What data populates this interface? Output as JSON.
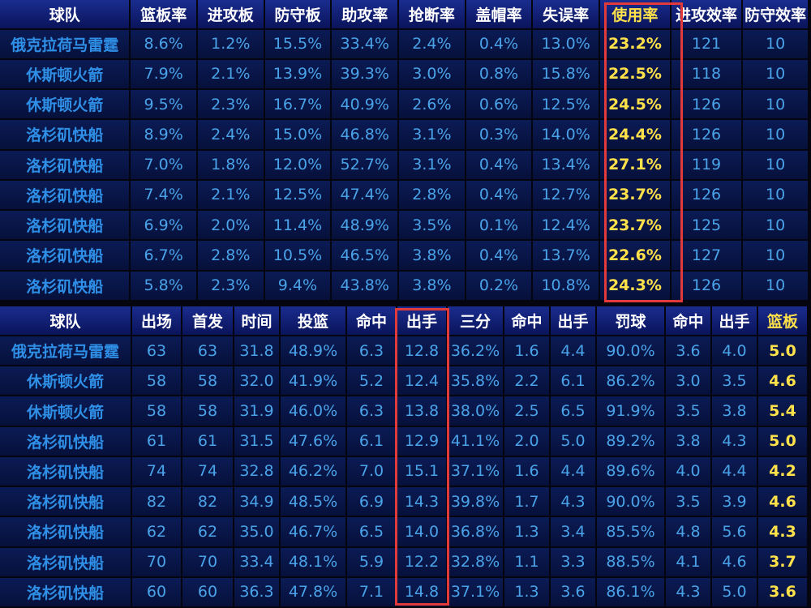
{
  "table1": {
    "headers": [
      "球队",
      "篮板率",
      "进攻板",
      "防守板",
      "助攻率",
      "抢断率",
      "盖帽率",
      "失误率",
      "使用率",
      "进攻效率",
      "防守效率"
    ],
    "highlight_col": 8,
    "rows": [
      [
        "俄克拉荷马雷霆",
        "8.6%",
        "1.2%",
        "15.5%",
        "33.4%",
        "2.4%",
        "0.4%",
        "13.0%",
        "23.2%",
        "121",
        "10"
      ],
      [
        "休斯顿火箭",
        "7.9%",
        "2.1%",
        "13.9%",
        "39.3%",
        "3.0%",
        "0.8%",
        "15.8%",
        "22.5%",
        "118",
        "10"
      ],
      [
        "休斯顿火箭",
        "9.5%",
        "2.3%",
        "16.7%",
        "40.9%",
        "2.6%",
        "0.6%",
        "12.5%",
        "24.5%",
        "126",
        "10"
      ],
      [
        "洛杉矶快船",
        "8.9%",
        "2.4%",
        "15.0%",
        "46.8%",
        "3.1%",
        "0.3%",
        "14.0%",
        "24.4%",
        "126",
        "10"
      ],
      [
        "洛杉矶快船",
        "7.0%",
        "1.8%",
        "12.0%",
        "52.7%",
        "3.1%",
        "0.4%",
        "13.4%",
        "27.1%",
        "119",
        "10"
      ],
      [
        "洛杉矶快船",
        "7.4%",
        "2.1%",
        "12.5%",
        "47.4%",
        "2.8%",
        "0.4%",
        "12.7%",
        "23.7%",
        "126",
        "10"
      ],
      [
        "洛杉矶快船",
        "6.9%",
        "2.0%",
        "11.4%",
        "48.9%",
        "3.5%",
        "0.1%",
        "12.4%",
        "23.7%",
        "125",
        "10"
      ],
      [
        "洛杉矶快船",
        "6.7%",
        "2.8%",
        "10.5%",
        "46.5%",
        "3.8%",
        "0.4%",
        "13.7%",
        "22.6%",
        "127",
        "10"
      ],
      [
        "洛杉矶快船",
        "5.8%",
        "2.3%",
        "9.4%",
        "43.8%",
        "3.8%",
        "0.2%",
        "10.8%",
        "24.3%",
        "126",
        "10"
      ]
    ]
  },
  "table2": {
    "headers": [
      "球队",
      "出场",
      "首发",
      "时间",
      "投篮",
      "命中",
      "出手",
      "三分",
      "命中",
      "出手",
      "罚球",
      "命中",
      "出手",
      "篮板"
    ],
    "highlight_col": 13,
    "rows": [
      [
        "俄克拉荷马雷霆",
        "63",
        "63",
        "31.8",
        "48.9%",
        "6.3",
        "12.8",
        "36.2%",
        "1.6",
        "4.4",
        "90.0%",
        "3.6",
        "4.0",
        "5.0"
      ],
      [
        "休斯顿火箭",
        "58",
        "58",
        "32.0",
        "41.9%",
        "5.2",
        "12.4",
        "35.8%",
        "2.2",
        "6.1",
        "86.2%",
        "3.0",
        "3.5",
        "4.6"
      ],
      [
        "休斯顿火箭",
        "58",
        "58",
        "31.9",
        "46.0%",
        "6.3",
        "13.8",
        "38.0%",
        "2.5",
        "6.5",
        "91.9%",
        "3.5",
        "3.8",
        "5.4"
      ],
      [
        "洛杉矶快船",
        "61",
        "61",
        "31.5",
        "47.6%",
        "6.1",
        "12.9",
        "41.1%",
        "2.0",
        "5.0",
        "89.2%",
        "3.8",
        "4.3",
        "5.0"
      ],
      [
        "洛杉矶快船",
        "74",
        "74",
        "32.8",
        "46.2%",
        "7.0",
        "15.1",
        "37.1%",
        "1.6",
        "4.4",
        "89.6%",
        "4.0",
        "4.4",
        "4.2"
      ],
      [
        "洛杉矶快船",
        "82",
        "82",
        "34.9",
        "48.5%",
        "6.9",
        "14.3",
        "39.8%",
        "1.7",
        "4.3",
        "90.0%",
        "3.5",
        "3.9",
        "4.6"
      ],
      [
        "洛杉矶快船",
        "62",
        "62",
        "35.0",
        "46.7%",
        "6.5",
        "14.0",
        "36.8%",
        "1.3",
        "3.4",
        "85.5%",
        "4.8",
        "5.6",
        "4.3"
      ],
      [
        "洛杉矶快船",
        "70",
        "70",
        "33.4",
        "48.1%",
        "5.9",
        "12.2",
        "32.8%",
        "1.1",
        "3.3",
        "88.5%",
        "4.1",
        "4.6",
        "3.7"
      ],
      [
        "洛杉矶快船",
        "60",
        "60",
        "36.3",
        "47.8%",
        "7.1",
        "14.8",
        "37.1%",
        "1.3",
        "3.6",
        "86.1%",
        "4.3",
        "5.0",
        "3.6"
      ]
    ]
  },
  "colors": {
    "highlight_text": "#ffe14a",
    "box_border": "#e23a3a",
    "cell_text": "#4aa3e8",
    "team_text": "#2f8fe6",
    "header_bg": "#1a2c8f",
    "page_bg": "#05050f"
  }
}
